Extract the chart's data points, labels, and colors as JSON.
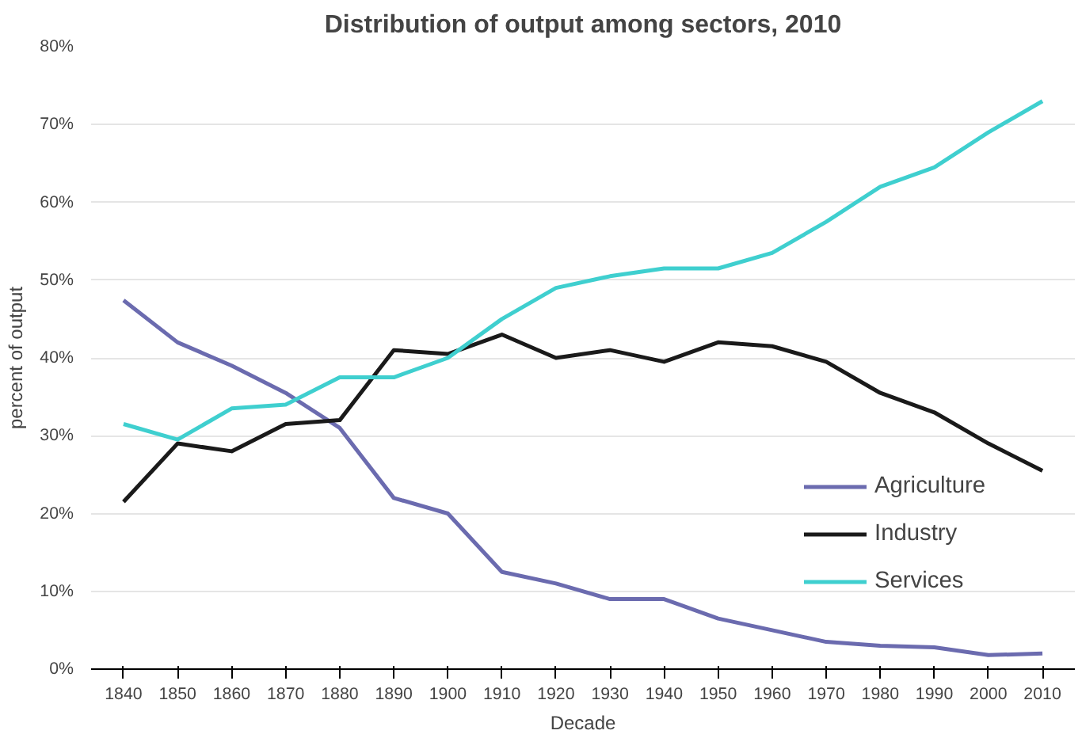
{
  "chart_data": {
    "type": "line",
    "title": "Distribution of output among sectors, 2010",
    "xlabel": "Decade",
    "ylabel": "percent of output",
    "categories": [
      "1840",
      "1850",
      "1860",
      "1870",
      "1880",
      "1890",
      "1900",
      "1910",
      "1920",
      "1930",
      "1940",
      "1950",
      "1960",
      "1970",
      "1980",
      "1990",
      "2000",
      "2010"
    ],
    "series": [
      {
        "name": "Agriculture",
        "color": "#6b6baf",
        "values": [
          47.4,
          42,
          39,
          35.5,
          31,
          22,
          20,
          12.5,
          11,
          9,
          9,
          6.5,
          5,
          3.5,
          3,
          2.8,
          1.8,
          2
        ]
      },
      {
        "name": "Industry",
        "color": "#1a1a1a",
        "values": [
          21.5,
          29,
          28,
          31.5,
          32,
          41,
          40.5,
          43,
          40,
          41,
          39.5,
          42,
          41.5,
          39.5,
          35.5,
          33,
          29,
          25.5
        ]
      },
      {
        "name": "Services",
        "color": "#3fcfcf",
        "values": [
          31.5,
          29.5,
          33.5,
          34,
          37.5,
          37.5,
          40,
          45,
          49,
          50.5,
          51.5,
          51.5,
          53.5,
          57.5,
          62,
          64.5,
          69,
          73
        ]
      }
    ],
    "ylim": [
      0,
      80
    ],
    "yticks": [
      {
        "value": 0,
        "label": "0%"
      },
      {
        "value": 10,
        "label": "10%"
      },
      {
        "value": 20,
        "label": "20%"
      },
      {
        "value": 30,
        "label": "30%"
      },
      {
        "value": 40,
        "label": "40%"
      },
      {
        "value": 50,
        "label": "50%"
      },
      {
        "value": 60,
        "label": "60%"
      },
      {
        "value": 70,
        "label": "70%"
      },
      {
        "value": 80,
        "label": "80%"
      }
    ],
    "grid": "y",
    "legend": "bottom right",
    "line_style": "solid"
  }
}
